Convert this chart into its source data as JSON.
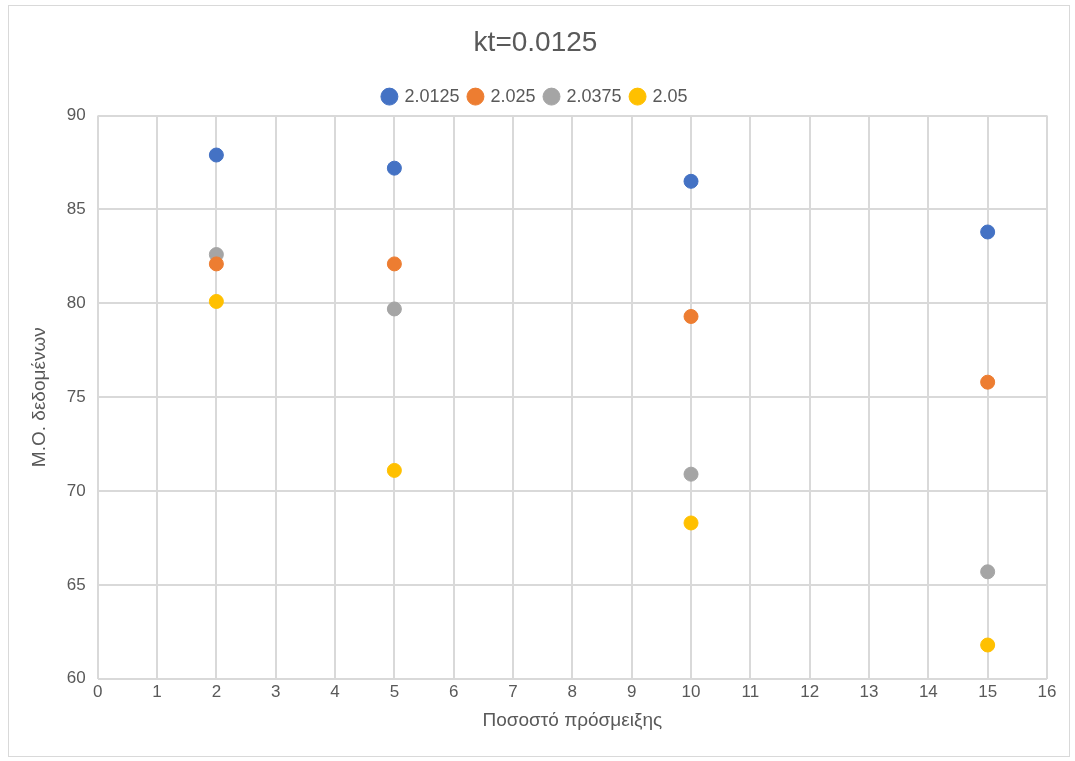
{
  "chart_data": {
    "type": "scatter",
    "title": "kt=0.0125",
    "xlabel": "Ποσοστό πρόσμειξης",
    "ylabel": "Μ.Ο. δεδομένων",
    "x": [
      2,
      5,
      10,
      15
    ],
    "series": [
      {
        "name": "2.0125",
        "color": "#4472c4",
        "values": [
          87.9,
          87.2,
          86.5,
          83.8
        ]
      },
      {
        "name": "2.025",
        "color": "#ed7d31",
        "values": [
          82.1,
          82.1,
          79.3,
          75.8
        ]
      },
      {
        "name": "2.0375",
        "color": "#a5a5a5",
        "values": [
          82.6,
          79.7,
          70.9,
          65.7
        ]
      },
      {
        "name": "2.05",
        "color": "#ffc000",
        "values": [
          80.1,
          71.1,
          68.3,
          61.8
        ]
      }
    ],
    "xlim": [
      0,
      16
    ],
    "xticks": [
      0,
      1,
      2,
      3,
      4,
      5,
      6,
      7,
      8,
      9,
      10,
      11,
      12,
      13,
      14,
      15,
      16
    ],
    "ylim": [
      60,
      90
    ],
    "yticks": [
      60,
      65,
      70,
      75,
      80,
      85,
      90
    ],
    "grid": true,
    "legend": "top",
    "marker": "circle"
  }
}
